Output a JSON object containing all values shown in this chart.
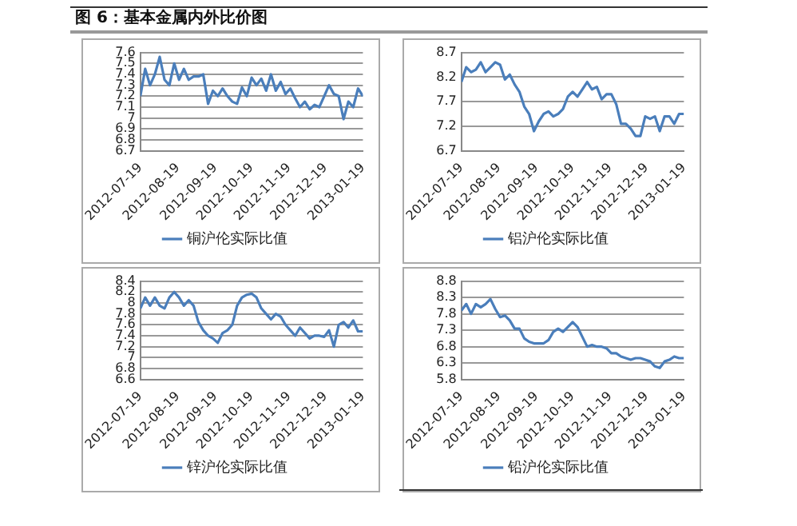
{
  "chart_data": [
    {
      "type": "line",
      "title": "图 6：基本金属内外比价图",
      "x": [
        "2012-07-19",
        "2012-07-23",
        "2012-07-27",
        "2012-07-31",
        "2012-08-04",
        "2012-08-08",
        "2012-08-12",
        "2012-08-16",
        "2012-08-20",
        "2012-08-24",
        "2012-08-28",
        "2012-09-01",
        "2012-09-05",
        "2012-09-09",
        "2012-09-13",
        "2012-09-17",
        "2012-09-21",
        "2012-09-25",
        "2012-09-29",
        "2012-10-03",
        "2012-10-07",
        "2012-10-11",
        "2012-10-15",
        "2012-10-19",
        "2012-10-23",
        "2012-10-27",
        "2012-10-31",
        "2012-11-04",
        "2012-11-08",
        "2012-11-12",
        "2012-11-16",
        "2012-11-20",
        "2012-11-24",
        "2012-11-28",
        "2012-12-02",
        "2012-12-06",
        "2012-12-10",
        "2012-12-14",
        "2012-12-18",
        "2012-12-22",
        "2012-12-26",
        "2012-12-30",
        "2013-01-03",
        "2013-01-07",
        "2013-01-11",
        "2013-01-15",
        "2013-01-19"
      ],
      "series": [
        {
          "name": "铜沪伦实际比值",
          "color": "#4a7ebb",
          "values": [
            7.2,
            7.45,
            7.3,
            7.4,
            7.56,
            7.35,
            7.3,
            7.5,
            7.35,
            7.45,
            7.35,
            7.38,
            7.38,
            7.4,
            7.13,
            7.25,
            7.2,
            7.27,
            7.2,
            7.15,
            7.13,
            7.28,
            7.2,
            7.37,
            7.3,
            7.36,
            7.25,
            7.4,
            7.25,
            7.33,
            7.22,
            7.27,
            7.18,
            7.1,
            7.15,
            7.08,
            7.12,
            7.1,
            7.2,
            7.3,
            7.22,
            7.2,
            6.99,
            7.15,
            7.1,
            7.27,
            7.2
          ]
        }
      ],
      "xlim": [
        "2012-07-19",
        "2013-01-19"
      ],
      "xticks": [
        "2012-07-19",
        "2012-08-19",
        "2012-09-19",
        "2012-10-19",
        "2012-11-19",
        "2012-12-19",
        "2013-01-19"
      ],
      "ylim": [
        6.7,
        7.6
      ],
      "yticks": [
        6.7,
        6.8,
        6.9,
        7,
        7.1,
        7.2,
        7.3,
        7.4,
        7.5,
        7.6
      ],
      "grid": "y",
      "legend": "bottom"
    },
    {
      "type": "line",
      "x": [
        "2012-07-19",
        "2012-07-23",
        "2012-07-27",
        "2012-07-31",
        "2012-08-04",
        "2012-08-08",
        "2012-08-12",
        "2012-08-16",
        "2012-08-20",
        "2012-08-24",
        "2012-08-28",
        "2012-09-01",
        "2012-09-05",
        "2012-09-09",
        "2012-09-13",
        "2012-09-17",
        "2012-09-21",
        "2012-09-25",
        "2012-09-29",
        "2012-10-03",
        "2012-10-07",
        "2012-10-11",
        "2012-10-15",
        "2012-10-19",
        "2012-10-23",
        "2012-10-27",
        "2012-10-31",
        "2012-11-04",
        "2012-11-08",
        "2012-11-12",
        "2012-11-16",
        "2012-11-20",
        "2012-11-24",
        "2012-11-28",
        "2012-12-02",
        "2012-12-06",
        "2012-12-10",
        "2012-12-14",
        "2012-12-18",
        "2012-12-22",
        "2012-12-26",
        "2012-12-30",
        "2013-01-03",
        "2013-01-07",
        "2013-01-11",
        "2013-01-15",
        "2013-01-19"
      ],
      "series": [
        {
          "name": "铝沪伦实际比值",
          "color": "#4a7ebb",
          "values": [
            8.1,
            8.4,
            8.3,
            8.35,
            8.5,
            8.3,
            8.4,
            8.5,
            8.45,
            8.15,
            8.25,
            8.05,
            7.9,
            7.6,
            7.45,
            7.1,
            7.3,
            7.45,
            7.5,
            7.4,
            7.45,
            7.55,
            7.8,
            7.9,
            7.8,
            7.95,
            8.1,
            7.95,
            8.0,
            7.75,
            7.85,
            7.85,
            7.65,
            7.25,
            7.25,
            7.15,
            7.0,
            7.0,
            7.4,
            7.35,
            7.4,
            7.1,
            7.4,
            7.4,
            7.25,
            7.45,
            7.45
          ]
        }
      ],
      "xlim": [
        "2012-07-19",
        "2013-01-19"
      ],
      "xticks": [
        "2012-07-19",
        "2012-08-19",
        "2012-09-19",
        "2012-10-19",
        "2012-11-19",
        "2012-12-19",
        "2013-01-19"
      ],
      "ylim": [
        6.7,
        8.7
      ],
      "yticks": [
        6.7,
        7.2,
        7.7,
        8.2,
        8.7
      ],
      "grid": "y",
      "legend": "bottom"
    },
    {
      "type": "line",
      "x": [
        "2012-07-19",
        "2012-07-23",
        "2012-07-27",
        "2012-07-31",
        "2012-08-04",
        "2012-08-08",
        "2012-08-12",
        "2012-08-16",
        "2012-08-20",
        "2012-08-24",
        "2012-08-28",
        "2012-09-01",
        "2012-09-05",
        "2012-09-09",
        "2012-09-13",
        "2012-09-17",
        "2012-09-21",
        "2012-09-25",
        "2012-09-29",
        "2012-10-03",
        "2012-10-07",
        "2012-10-11",
        "2012-10-15",
        "2012-10-19",
        "2012-10-23",
        "2012-10-27",
        "2012-10-31",
        "2012-11-04",
        "2012-11-08",
        "2012-11-12",
        "2012-11-16",
        "2012-11-20",
        "2012-11-24",
        "2012-11-28",
        "2012-12-02",
        "2012-12-06",
        "2012-12-10",
        "2012-12-14",
        "2012-12-18",
        "2012-12-22",
        "2012-12-26",
        "2012-12-30",
        "2013-01-03",
        "2013-01-07",
        "2013-01-11",
        "2013-01-15",
        "2013-01-19"
      ],
      "series": [
        {
          "name": "锌沪伦实际比值",
          "color": "#4a7ebb",
          "values": [
            7.9,
            8.1,
            7.95,
            8.1,
            7.95,
            7.9,
            8.1,
            8.2,
            8.1,
            7.95,
            8.05,
            7.95,
            7.65,
            7.5,
            7.4,
            7.35,
            7.27,
            7.45,
            7.5,
            7.6,
            7.95,
            8.1,
            8.15,
            8.17,
            8.1,
            7.9,
            7.8,
            7.7,
            7.8,
            7.75,
            7.6,
            7.5,
            7.4,
            7.55,
            7.45,
            7.35,
            7.4,
            7.4,
            7.38,
            7.5,
            7.2,
            7.6,
            7.65,
            7.55,
            7.68,
            7.48,
            7.48
          ]
        }
      ],
      "xlim": [
        "2012-07-19",
        "2013-01-19"
      ],
      "xticks": [
        "2012-07-19",
        "2012-08-19",
        "2012-09-19",
        "2012-10-19",
        "2012-11-19",
        "2012-12-19",
        "2013-01-19"
      ],
      "ylim": [
        6.6,
        8.4
      ],
      "yticks": [
        6.6,
        6.8,
        7,
        7.2,
        7.4,
        7.6,
        7.8,
        8,
        8.2,
        8.4
      ],
      "grid": "y",
      "legend": "bottom"
    },
    {
      "type": "line",
      "x": [
        "2012-07-19",
        "2012-07-23",
        "2012-07-27",
        "2012-07-31",
        "2012-08-04",
        "2012-08-08",
        "2012-08-12",
        "2012-08-16",
        "2012-08-20",
        "2012-08-24",
        "2012-08-28",
        "2012-09-01",
        "2012-09-05",
        "2012-09-09",
        "2012-09-13",
        "2012-09-17",
        "2012-09-21",
        "2012-09-25",
        "2012-09-29",
        "2012-10-03",
        "2012-10-07",
        "2012-10-11",
        "2012-10-15",
        "2012-10-19",
        "2012-10-23",
        "2012-10-27",
        "2012-10-31",
        "2012-11-04",
        "2012-11-08",
        "2012-11-12",
        "2012-11-16",
        "2012-11-20",
        "2012-11-24",
        "2012-11-28",
        "2012-12-02",
        "2012-12-06",
        "2012-12-10",
        "2012-12-14",
        "2012-12-18",
        "2012-12-22",
        "2012-12-26",
        "2012-12-30",
        "2013-01-03",
        "2013-01-07",
        "2013-01-11",
        "2013-01-15",
        "2013-01-19"
      ],
      "series": [
        {
          "name": "铅沪伦实际比值",
          "color": "#4a7ebb",
          "values": [
            7.9,
            8.1,
            7.8,
            8.1,
            8.0,
            8.1,
            8.25,
            7.95,
            7.7,
            7.75,
            7.6,
            7.35,
            7.35,
            7.05,
            6.95,
            6.9,
            6.9,
            6.9,
            7.0,
            7.25,
            7.35,
            7.25,
            7.4,
            7.55,
            7.4,
            7.1,
            6.8,
            6.85,
            6.8,
            6.8,
            6.75,
            6.6,
            6.6,
            6.5,
            6.45,
            6.4,
            6.45,
            6.45,
            6.4,
            6.35,
            6.2,
            6.15,
            6.35,
            6.4,
            6.5,
            6.45,
            6.45
          ]
        }
      ],
      "xlim": [
        "2012-07-19",
        "2013-01-19"
      ],
      "xticks": [
        "2012-07-19",
        "2012-08-19",
        "2012-09-19",
        "2012-10-19",
        "2012-11-19",
        "2012-12-19",
        "2013-01-19"
      ],
      "ylim": [
        5.8,
        8.8
      ],
      "yticks": [
        5.8,
        6.3,
        6.8,
        7.3,
        7.8,
        8.3,
        8.8
      ],
      "grid": "y",
      "legend": "bottom"
    }
  ]
}
